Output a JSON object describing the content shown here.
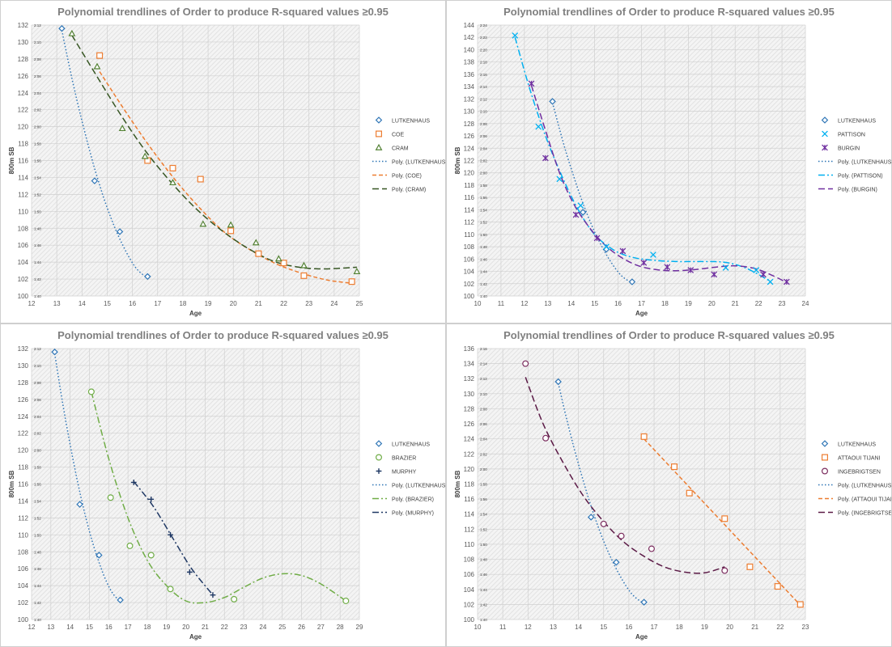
{
  "chart_data": [
    {
      "type": "scatter",
      "title": "Polynomial trendlines of Order to produce R-squared values ≥0.95",
      "xlabel": "Age",
      "ylabel": "800m SB",
      "xlim": [
        12,
        25
      ],
      "ylim": [
        100,
        132
      ],
      "x_ticks": [
        "12",
        "13",
        "14",
        "15",
        "16",
        "17",
        "18",
        "19",
        "20",
        "21",
        "22",
        "23",
        "24",
        "25"
      ],
      "y_ticks": [
        "100",
        "102",
        "104",
        "106",
        "108",
        "110",
        "112",
        "114",
        "116",
        "118",
        "120",
        "122",
        "124",
        "126",
        "128",
        "130",
        "132"
      ],
      "y_time_ticks": [
        "1:40",
        "1:42",
        "1:44",
        "1:46",
        "1:48",
        "1:50",
        "1:52",
        "1:54",
        "1:56",
        "1:58",
        "2:00",
        "2:02",
        "2:04",
        "2:06",
        "2:08",
        "2:10",
        "2:12"
      ],
      "series": [
        {
          "name": "LUTKENHAUS",
          "marker": "diamond",
          "color": "#2e75b6",
          "x": [
            13.2,
            14.5,
            15.5,
            16.6
          ],
          "y": [
            131.6,
            113.6,
            107.6,
            102.3
          ]
        },
        {
          "name": "COE",
          "marker": "square",
          "color": "#ed7d31",
          "x": [
            14.7,
            16.6,
            17.6,
            18.7,
            19.9,
            21.0,
            22.0,
            22.8,
            24.7
          ],
          "y": [
            128.4,
            116.0,
            115.1,
            113.8,
            107.7,
            105.0,
            103.9,
            102.4,
            101.7
          ]
        },
        {
          "name": "CRAM",
          "marker": "triangle",
          "color": "#548235",
          "x": [
            13.6,
            14.6,
            15.6,
            16.5,
            17.6,
            18.8,
            19.9,
            20.9,
            21.8,
            22.8,
            24.9
          ],
          "y": [
            131.0,
            127.1,
            119.8,
            116.5,
            113.4,
            108.5,
            108.4,
            106.3,
            104.4,
            103.6,
            102.9
          ]
        }
      ],
      "trendlines": [
        {
          "name": "Poly. (LUTKENHAUS)",
          "color": "#2e75b6",
          "dash": "dot",
          "x": [
            13.2,
            13.5,
            13.8,
            14.1,
            14.4,
            14.7,
            15.0,
            15.3,
            15.6,
            15.9,
            16.2,
            16.6
          ],
          "y": [
            131.4,
            127.1,
            123.1,
            119.5,
            116.1,
            113.1,
            110.4,
            108.1,
            106.1,
            104.4,
            103.1,
            102.1
          ]
        },
        {
          "name": "Poly. (COE)",
          "color": "#ed7d31",
          "dash": "dash",
          "x": [
            14.7,
            15.7,
            16.7,
            17.7,
            18.7,
            19.7,
            20.7,
            21.7,
            22.7,
            23.7,
            24.7
          ],
          "y": [
            126.5,
            121.9,
            117.6,
            113.7,
            110.3,
            107.4,
            105.4,
            103.8,
            102.7,
            101.9,
            101.5
          ]
        },
        {
          "name": "Poly. (CRAM)",
          "color": "#375623",
          "dash": "longdash",
          "x": [
            13.6,
            14.6,
            15.6,
            16.6,
            17.6,
            18.6,
            19.6,
            20.6,
            21.6,
            22.6,
            23.6,
            24.9
          ],
          "y": [
            130.8,
            125.9,
            121.1,
            116.8,
            113.2,
            110.1,
            107.6,
            105.6,
            104.1,
            103.4,
            103.2,
            103.4
          ]
        }
      ]
    },
    {
      "type": "scatter",
      "title": "Polynomial trendlines of Order to produce R-squared values ≥0.95",
      "xlabel": "Age",
      "ylabel": "800m SB",
      "xlim": [
        10,
        24
      ],
      "ylim": [
        100,
        144
      ],
      "x_ticks": [
        "10",
        "11",
        "12",
        "13",
        "14",
        "15",
        "16",
        "17",
        "18",
        "19",
        "20",
        "21",
        "22",
        "23",
        "24"
      ],
      "y_ticks": [
        "100",
        "102",
        "104",
        "106",
        "108",
        "110",
        "112",
        "114",
        "116",
        "118",
        "120",
        "122",
        "124",
        "126",
        "128",
        "130",
        "132",
        "134",
        "136",
        "138",
        "140",
        "142",
        "144"
      ],
      "y_time_ticks": [
        "1:40",
        "1:42",
        "1:44",
        "1:46",
        "1:48",
        "1:50",
        "1:52",
        "1:54",
        "1:56",
        "1:58",
        "2:00",
        "2:02",
        "2:04",
        "2:06",
        "2:08",
        "2:10",
        "2:12",
        "2:14",
        "2:16",
        "2:18",
        "2:20",
        "2:22",
        "2:24"
      ],
      "series": [
        {
          "name": "LUTKENHAUS",
          "marker": "diamond",
          "color": "#2e75b6",
          "x": [
            13.2,
            14.5,
            15.5,
            16.6
          ],
          "y": [
            131.6,
            113.6,
            107.6,
            102.3
          ]
        },
        {
          "name": "PATTISON",
          "marker": "x",
          "color": "#00b0f0",
          "x": [
            11.6,
            12.6,
            13.5,
            14.4,
            15.5,
            17.5,
            20.6,
            21.9,
            22.5
          ],
          "y": [
            142.3,
            127.5,
            119.0,
            114.7,
            108.0,
            106.7,
            104.6,
            104.2,
            102.3
          ]
        },
        {
          "name": "BURGIN",
          "marker": "star",
          "color": "#7030a0",
          "x": [
            12.3,
            12.9,
            14.2,
            15.1,
            16.2,
            17.1,
            18.1,
            19.1,
            20.1,
            22.2,
            23.2
          ],
          "y": [
            134.5,
            122.4,
            113.2,
            109.4,
            107.3,
            105.4,
            104.7,
            104.2,
            103.5,
            103.5,
            102.3
          ]
        }
      ],
      "trendlines": [
        {
          "name": "Poly. (LUTKENHAUS)",
          "color": "#2e75b6",
          "dash": "dot",
          "x": [
            13.2,
            13.5,
            13.8,
            14.1,
            14.4,
            14.7,
            15.0,
            15.3,
            15.6,
            15.9,
            16.2,
            16.6
          ],
          "y": [
            131.4,
            127.1,
            123.1,
            119.5,
            116.1,
            113.1,
            110.4,
            108.1,
            106.1,
            104.4,
            103.1,
            102.1
          ]
        },
        {
          "name": "Poly. (PATTISON)",
          "color": "#00b0f0",
          "dash": "dashdot",
          "x": [
            11.6,
            12.2,
            12.9,
            13.6,
            14.3,
            15.0,
            15.8,
            16.6,
            17.5,
            18.5,
            19.5,
            20.5,
            21.2,
            21.8,
            22.5
          ],
          "y": [
            142.0,
            134.0,
            126.0,
            119.5,
            114.0,
            110.0,
            107.5,
            106.3,
            105.8,
            105.6,
            105.6,
            105.5,
            104.9,
            103.9,
            102.4
          ]
        },
        {
          "name": "Poly. (BURGIN)",
          "color": "#7030a0",
          "dash": "longdash",
          "x": [
            12.3,
            12.9,
            13.5,
            14.1,
            14.7,
            15.3,
            16.0,
            16.8,
            17.6,
            18.4,
            19.3,
            20.2,
            21.0,
            21.8,
            22.5,
            23.2
          ],
          "y": [
            134.2,
            126.9,
            120.0,
            115.0,
            111.5,
            108.8,
            106.6,
            105.0,
            104.3,
            104.1,
            104.3,
            104.7,
            104.9,
            104.5,
            103.5,
            102.2
          ]
        }
      ]
    },
    {
      "type": "scatter",
      "title": "Polynomial trendlines of Order to produce R-squared values ≥0.95",
      "xlabel": "Age",
      "ylabel": "800m SB",
      "xlim": [
        12,
        29
      ],
      "ylim": [
        100,
        132
      ],
      "x_ticks": [
        "12",
        "13",
        "14",
        "15",
        "16",
        "17",
        "18",
        "19",
        "20",
        "21",
        "22",
        "23",
        "24",
        "25",
        "26",
        "27",
        "28",
        "29"
      ],
      "y_ticks": [
        "100",
        "102",
        "104",
        "106",
        "108",
        "110",
        "112",
        "114",
        "116",
        "118",
        "120",
        "122",
        "124",
        "126",
        "128",
        "130",
        "132"
      ],
      "y_time_ticks": [
        "1:40",
        "1:42",
        "1:44",
        "1:46",
        "1:48",
        "1:50",
        "1:52",
        "1:54",
        "1:56",
        "1:58",
        "2:00",
        "2:02",
        "2:04",
        "2:06",
        "2:08",
        "2:10",
        "2:12"
      ],
      "series": [
        {
          "name": "LUTKENHAUS",
          "marker": "diamond",
          "color": "#2e75b6",
          "x": [
            13.2,
            14.5,
            15.5,
            16.6
          ],
          "y": [
            131.6,
            113.6,
            107.6,
            102.3
          ]
        },
        {
          "name": "BRAZIER",
          "marker": "circle",
          "color": "#70ad47",
          "x": [
            15.1,
            16.1,
            17.1,
            18.2,
            19.2,
            22.5,
            28.3
          ],
          "y": [
            126.9,
            114.4,
            108.7,
            107.6,
            103.6,
            102.4,
            102.2
          ]
        },
        {
          "name": "MURPHY",
          "marker": "plus",
          "color": "#1f3864",
          "x": [
            17.3,
            18.2,
            19.2,
            20.2,
            21.4
          ],
          "y": [
            116.2,
            114.2,
            110.0,
            105.6,
            102.9
          ]
        }
      ],
      "trendlines": [
        {
          "name": "Poly. (LUTKENHAUS)",
          "color": "#2e75b6",
          "dash": "dot",
          "x": [
            13.2,
            13.5,
            13.8,
            14.1,
            14.4,
            14.7,
            15.0,
            15.3,
            15.6,
            15.9,
            16.2,
            16.6
          ],
          "y": [
            131.4,
            127.1,
            123.1,
            119.5,
            116.1,
            113.1,
            110.4,
            108.1,
            106.1,
            104.4,
            103.1,
            102.1
          ]
        },
        {
          "name": "Poly. (BRAZIER)",
          "color": "#70ad47",
          "dash": "dashdot",
          "x": [
            15.1,
            16.0,
            17.0,
            18.0,
            19.0,
            20.0,
            21.0,
            22.0,
            23.0,
            24.0,
            25.0,
            26.0,
            27.0,
            28.3
          ],
          "y": [
            126.9,
            119.0,
            112.0,
            107.0,
            104.0,
            102.2,
            102.0,
            102.6,
            103.8,
            104.9,
            105.4,
            105.2,
            104.2,
            102.2
          ]
        },
        {
          "name": "Poly. (MURPHY)",
          "color": "#1f3864",
          "dash": "dashdot",
          "x": [
            17.3,
            18.3,
            19.3,
            20.3,
            21.4
          ],
          "y": [
            116.3,
            113.4,
            109.7,
            106.0,
            102.9
          ]
        }
      ]
    },
    {
      "type": "scatter",
      "title": "Polynomial trendlines of Order to produce R-squared values ≥0.95",
      "xlabel": "Age",
      "ylabel": "800m SB",
      "xlim": [
        10,
        23
      ],
      "ylim": [
        100,
        136
      ],
      "x_ticks": [
        "10",
        "11",
        "12",
        "13",
        "14",
        "15",
        "16",
        "17",
        "18",
        "19",
        "20",
        "21",
        "22",
        "23"
      ],
      "y_ticks": [
        "100",
        "102",
        "104",
        "106",
        "108",
        "110",
        "112",
        "114",
        "116",
        "118",
        "120",
        "122",
        "124",
        "126",
        "128",
        "130",
        "132",
        "134",
        "136"
      ],
      "y_time_ticks": [
        "1:40",
        "1:42",
        "1:44",
        "1:46",
        "1:48",
        "1:50",
        "1:52",
        "1:54",
        "1:56",
        "1:58",
        "2:00",
        "2:02",
        "2:04",
        "2:06",
        "2:08",
        "2:10",
        "2:12",
        "2:14",
        "2:16"
      ],
      "series": [
        {
          "name": "LUTKENHAUS",
          "marker": "diamond",
          "color": "#2e75b6",
          "x": [
            13.2,
            14.5,
            15.5,
            16.6
          ],
          "y": [
            131.6,
            113.6,
            107.6,
            102.3
          ]
        },
        {
          "name": "ATTAOUI TIJANI",
          "marker": "square",
          "color": "#ed7d31",
          "x": [
            16.6,
            17.8,
            18.4,
            19.8,
            20.8,
            21.9,
            22.8
          ],
          "y": [
            124.3,
            120.3,
            116.8,
            113.4,
            107.0,
            104.4,
            102.0
          ]
        },
        {
          "name": "INGEBRIGTSEN",
          "marker": "circle",
          "color": "#7b2c5e",
          "x": [
            11.9,
            12.7,
            15.0,
            15.7,
            16.9,
            19.8
          ],
          "y": [
            134.0,
            124.1,
            112.7,
            111.1,
            109.4,
            106.5
          ]
        }
      ],
      "trendlines": [
        {
          "name": "Poly. (LUTKENHAUS)",
          "color": "#2e75b6",
          "dash": "dot",
          "x": [
            13.2,
            13.5,
            13.8,
            14.1,
            14.4,
            14.7,
            15.0,
            15.3,
            15.6,
            15.9,
            16.2,
            16.6
          ],
          "y": [
            131.4,
            127.1,
            123.1,
            119.5,
            116.1,
            113.1,
            110.4,
            108.1,
            106.1,
            104.4,
            103.1,
            102.1
          ]
        },
        {
          "name": "Poly. (ATTAOUI TIJANI)",
          "color": "#ed7d31",
          "dash": "dash",
          "x": [
            16.6,
            22.8
          ],
          "y": [
            124.0,
            101.9
          ]
        },
        {
          "name": "Poly. (INGEBRIGTSEN)",
          "color": "#5b1a46",
          "dash": "longdash",
          "x": [
            11.9,
            12.6,
            13.4,
            14.2,
            15.0,
            15.8,
            16.6,
            17.4,
            18.2,
            19.0,
            19.8
          ],
          "y": [
            132.2,
            126.0,
            120.8,
            116.4,
            113.0,
            110.3,
            108.4,
            107.0,
            106.3,
            106.2,
            107.0
          ]
        }
      ]
    }
  ]
}
